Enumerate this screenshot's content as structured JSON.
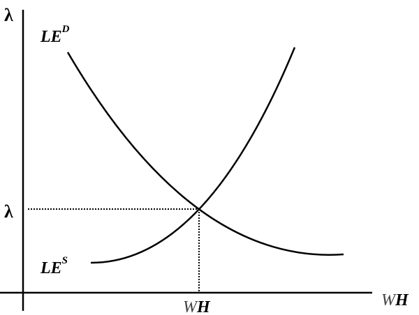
{
  "axes": {
    "y_label": "λ",
    "x_label_w": "W",
    "x_label_h": "H"
  },
  "curves": {
    "demand": {
      "label_base": "LE",
      "label_sup": "D"
    },
    "supply": {
      "label_base": "LE",
      "label_sup": "S"
    }
  },
  "equilibrium": {
    "y_label": "λ",
    "x_label_w": "W",
    "x_label_h": "H"
  }
}
